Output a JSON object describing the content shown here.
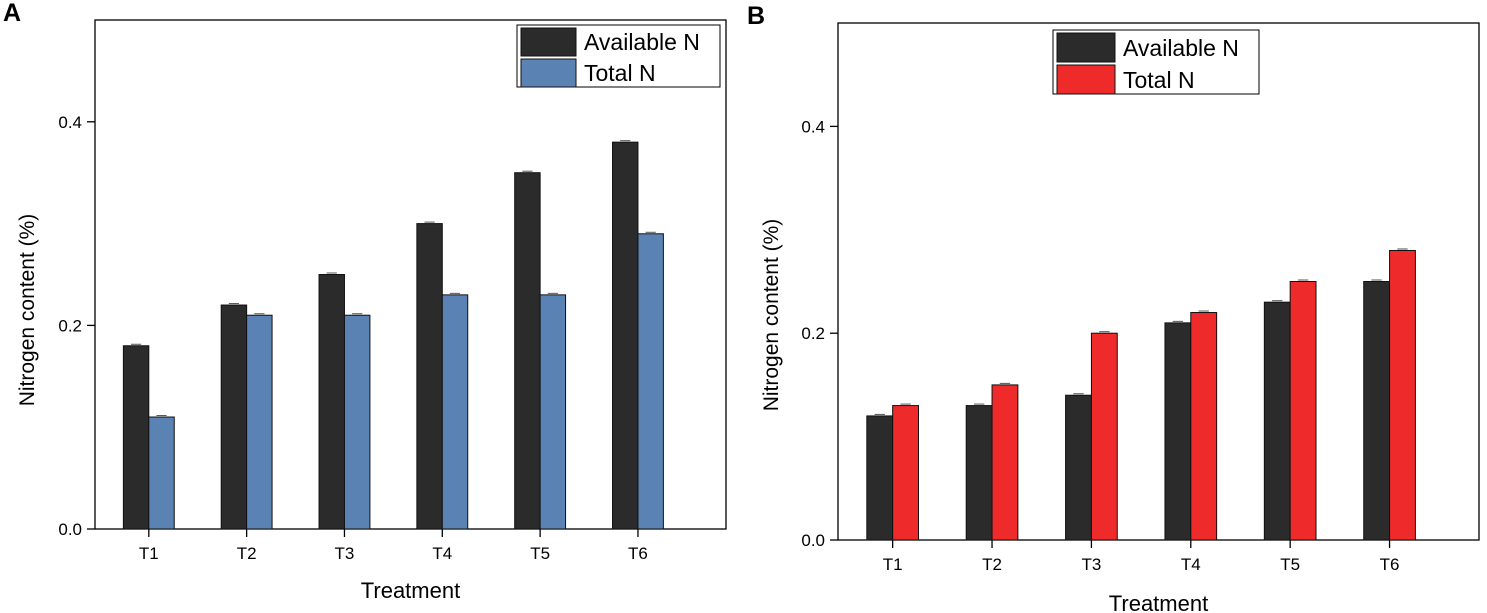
{
  "chart_data": [
    {
      "panel": "A",
      "type": "bar",
      "title": "",
      "xlabel": "Treatment",
      "ylabel": "Nitrogen content (%)",
      "ylim": [
        0,
        0.5
      ],
      "yticks": [
        "0.0",
        "0.2",
        "0.4"
      ],
      "ytick_values": [
        0,
        0.2,
        0.4
      ],
      "categories": [
        "T1",
        "T2",
        "T3",
        "T4",
        "T5",
        "T6"
      ],
      "series": [
        {
          "name": "Available N",
          "color": "#2b2b2b",
          "values": [
            0.18,
            0.22,
            0.25,
            0.3,
            0.35,
            0.38
          ]
        },
        {
          "name": "Total N",
          "color": "#5a82b3",
          "values": [
            0.11,
            0.21,
            0.21,
            0.23,
            0.23,
            0.29
          ]
        }
      ],
      "legend_position": "top-right",
      "grid": false
    },
    {
      "panel": "B",
      "type": "bar",
      "title": "",
      "xlabel": "Treatment",
      "ylabel": "Nitrogen content (%)",
      "ylim": [
        0,
        0.5
      ],
      "yticks": [
        "0.0",
        "0.2",
        "0.4"
      ],
      "ytick_values": [
        0,
        0.2,
        0.4
      ],
      "categories": [
        "T1",
        "T2",
        "T3",
        "T4",
        "T5",
        "T6"
      ],
      "series": [
        {
          "name": "Available N",
          "color": "#2b2b2b",
          "values": [
            0.12,
            0.13,
            0.14,
            0.21,
            0.23,
            0.25
          ]
        },
        {
          "name": "Total N",
          "color": "#ee2a2a",
          "values": [
            0.13,
            0.15,
            0.2,
            0.22,
            0.25,
            0.28
          ]
        }
      ],
      "legend_position": "top-center",
      "grid": false
    }
  ]
}
